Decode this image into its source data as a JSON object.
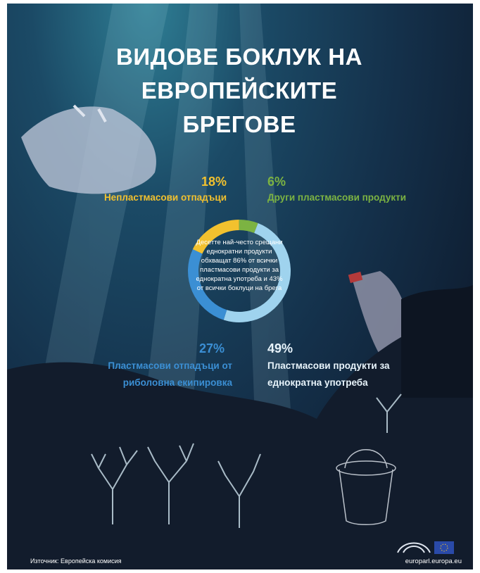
{
  "chart_data": {
    "type": "pie",
    "title": "ВИДОВЕ БОКЛУК НА ЕВРОПЕЙСКИТЕ БРЕГОВЕ",
    "categories": [
      "Непластмасови отпадъци",
      "Други пластмасови продукти",
      "Пластмасови продукти за еднократна употреба",
      "Пластмасови отпадъци от риболовна екипировка"
    ],
    "values": [
      18,
      6,
      49,
      27
    ],
    "value_labels": [
      "18%",
      "6%",
      "49%",
      "27%"
    ],
    "colors": [
      "#f2c12e",
      "#7cb342",
      "#9fd3ee",
      "#3b8fd4"
    ],
    "center_text": "Десетте най-често срещани еднократни продукти обхващат 86% от всички пластмасови продукти за еднократна употреба и 43% от всички боклуци на брега",
    "source": "Източник: Европейска комисия",
    "url": "europarl.europa.eu"
  }
}
